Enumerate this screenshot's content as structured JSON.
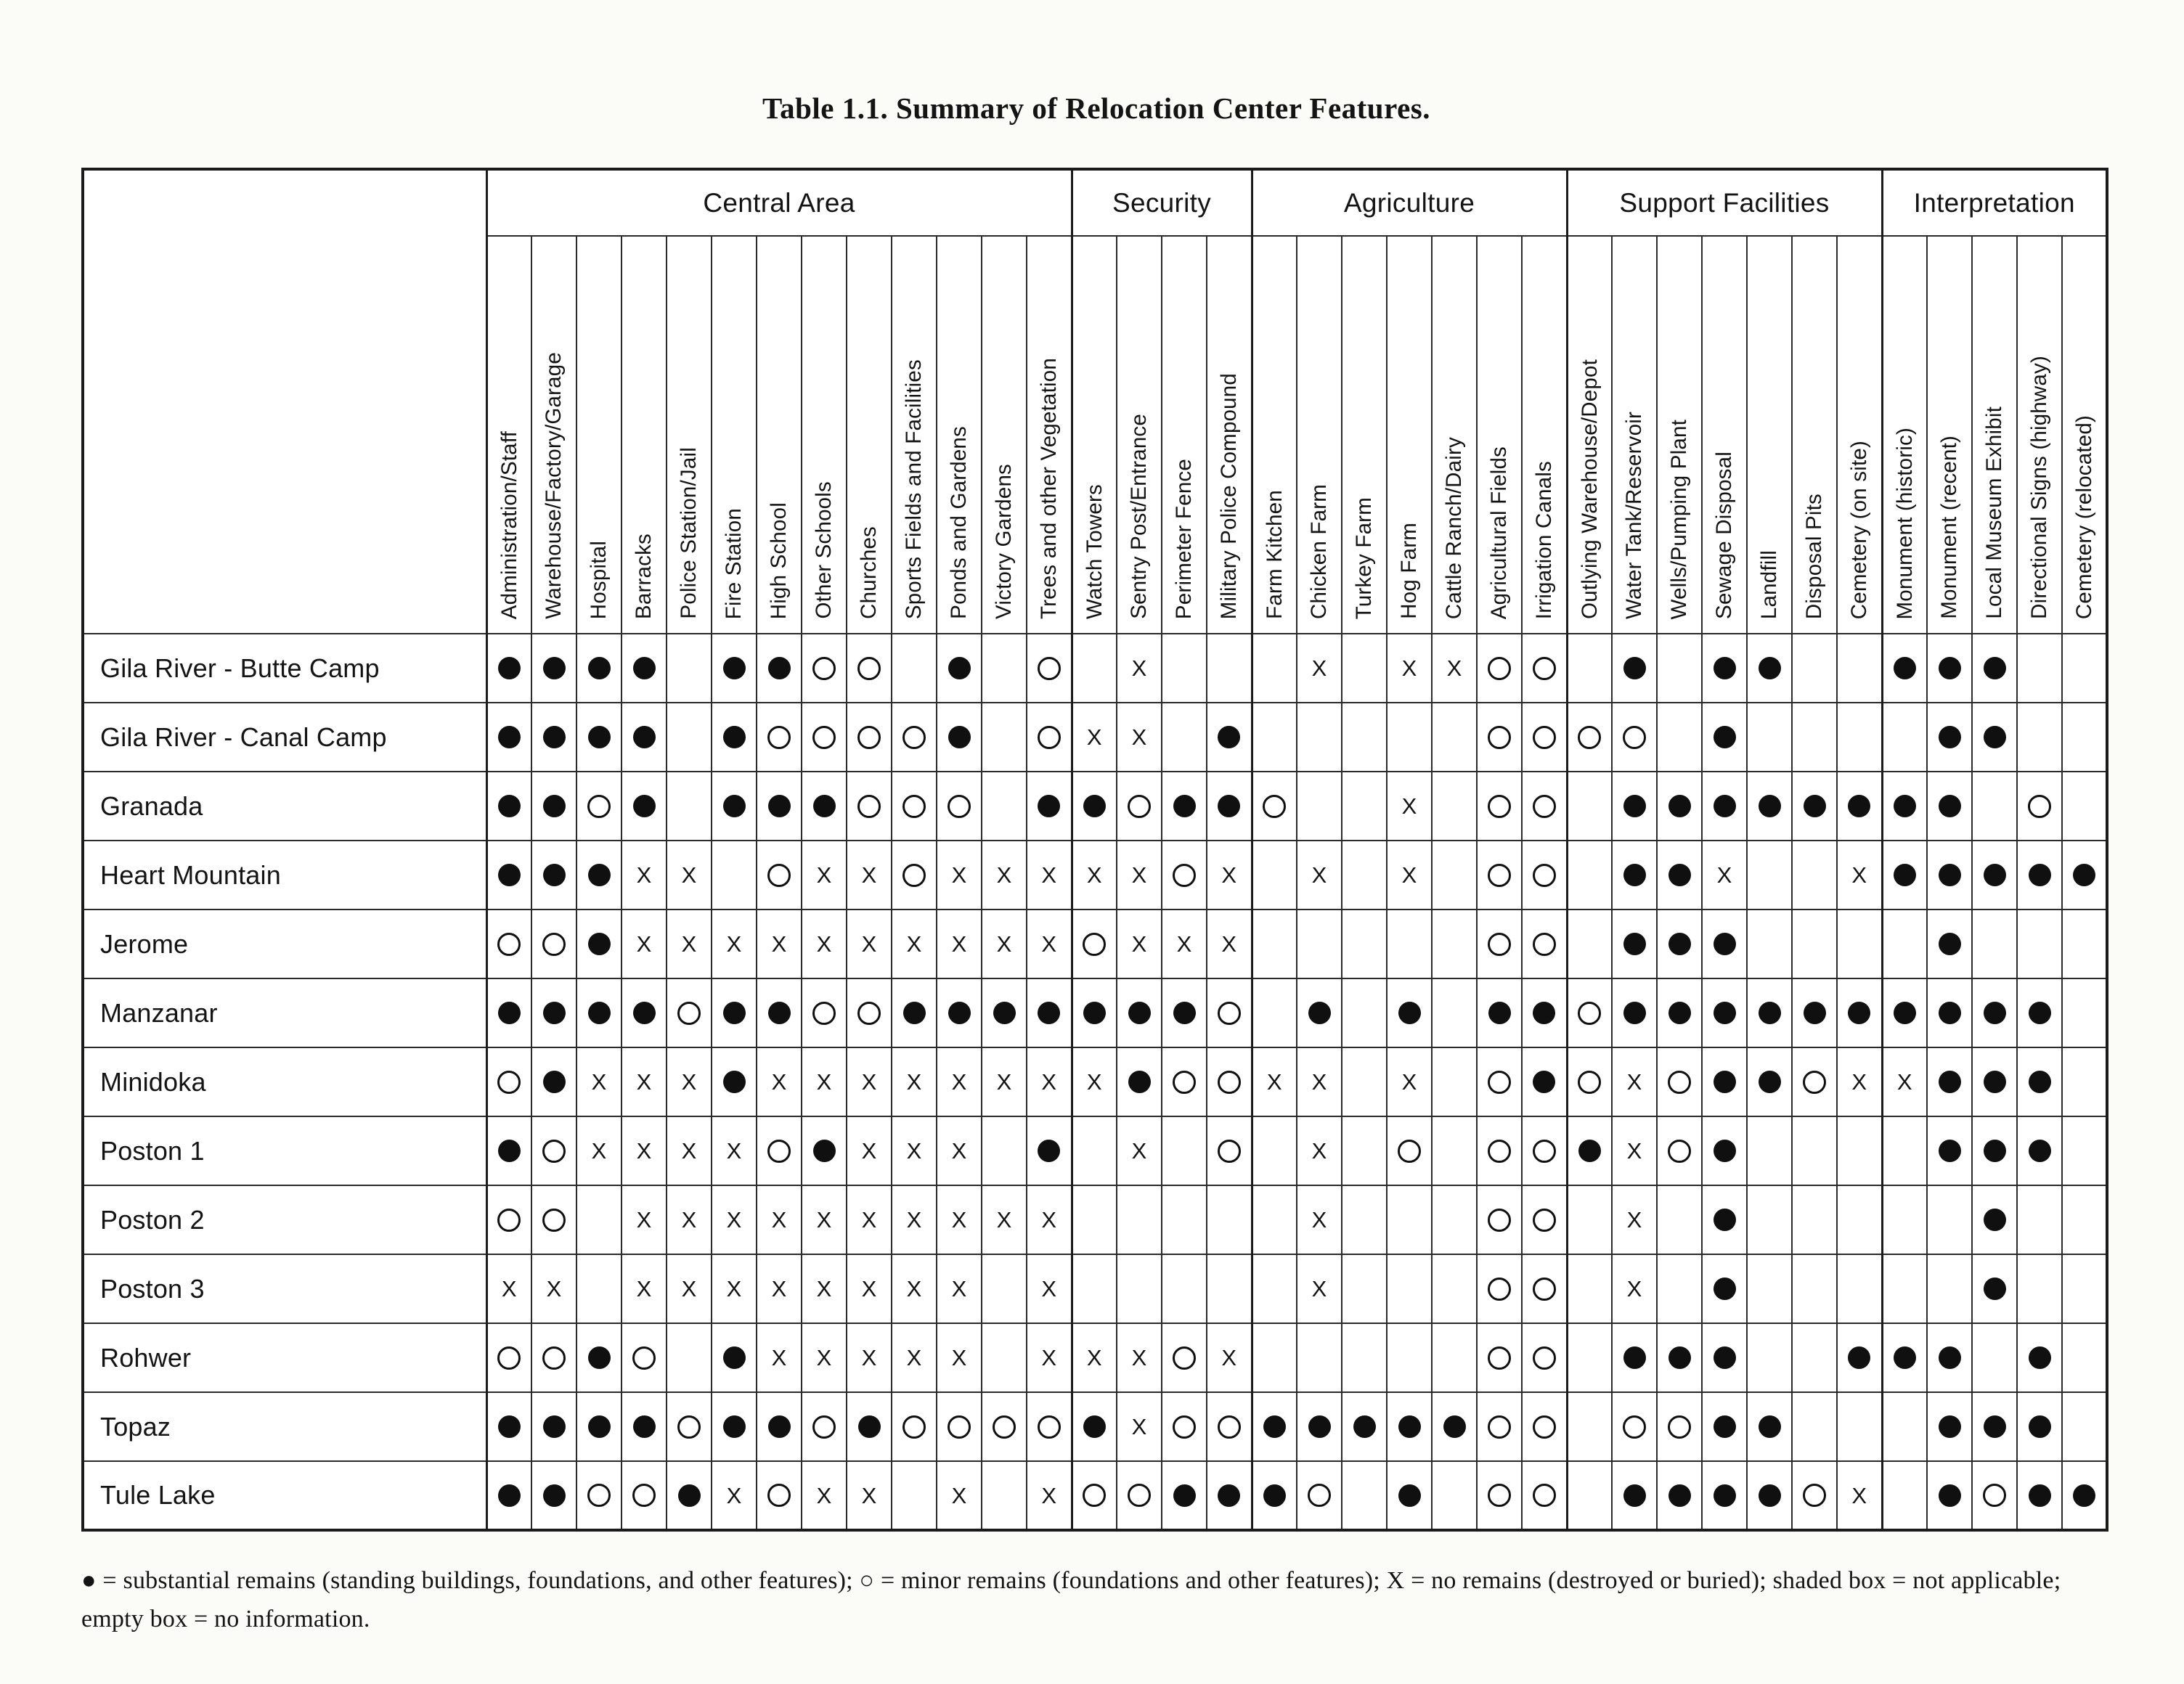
{
  "page": {
    "title": "Table 1.1. Summary of Relocation Center Features.",
    "legend": "● = substantial remains (standing buildings, foundations, and other features); ○ = minor remains (foundations and other features); X = no remains (destroyed or buried); shaded box = not applicable; empty box = no information."
  },
  "table": {
    "symbol_legend": {
      "F": "substantial remains (filled circle)",
      "O": "minor remains (open circle)",
      "X": "no remains",
      "": "no information"
    },
    "groups": [
      {
        "label": "Central Area",
        "columns": [
          "Administration/Staff",
          "Warehouse/Factory/Garage",
          "Hospital",
          "Barracks",
          "Police Station/Jail",
          "Fire Station",
          "High School",
          "Other Schools",
          "Churches",
          "Sports Fields and Facilities",
          "Ponds and Gardens",
          "Victory Gardens",
          "Trees and other Vegetation"
        ]
      },
      {
        "label": "Security",
        "columns": [
          "Watch Towers",
          "Sentry Post/Entrance",
          "Perimeter Fence",
          "Military Police Compound"
        ]
      },
      {
        "label": "Agriculture",
        "columns": [
          "Farm Kitchen",
          "Chicken Farm",
          "Turkey Farm",
          "Hog Farm",
          "Cattle Ranch/Dairy",
          "Agricultural Fields",
          "Irrigation Canals"
        ]
      },
      {
        "label": "Support Facilities",
        "columns": [
          "Outlying Warehouse/Depot",
          "Water Tank/Reservoir",
          "Wells/Pumping Plant",
          "Sewage Disposal",
          "Landfill",
          "Disposal Pits",
          "Cemetery (on site)"
        ]
      },
      {
        "label": "Interpretation",
        "columns": [
          "Monument (historic)",
          "Monument (recent)",
          "Local Museum Exhibit",
          "Directional Signs (highway)",
          "Cemetery (relocated)"
        ]
      }
    ],
    "rows": [
      {
        "name": "Gila River - Butte Camp",
        "cells": [
          "F",
          "F",
          "F",
          "F",
          "",
          "F",
          "F",
          "O",
          "O",
          "",
          "F",
          "",
          "O",
          "",
          "X",
          "",
          "",
          "",
          "X",
          "",
          "X",
          "X",
          "O",
          "O",
          "",
          "F",
          "",
          "F",
          "F",
          "",
          "",
          "F",
          "F",
          "F",
          "",
          ""
        ]
      },
      {
        "name": "Gila River - Canal Camp",
        "cells": [
          "F",
          "F",
          "F",
          "F",
          "",
          "F",
          "O",
          "O",
          "O",
          "O",
          "F",
          "",
          "O",
          "X",
          "X",
          "",
          "F",
          "",
          "",
          "",
          "",
          "",
          "O",
          "O",
          "O",
          "O",
          "",
          "F",
          "",
          "",
          "",
          "",
          "F",
          "F",
          "",
          ""
        ]
      },
      {
        "name": "Granada",
        "cells": [
          "F",
          "F",
          "O",
          "F",
          "",
          "F",
          "F",
          "F",
          "O",
          "O",
          "O",
          "",
          "F",
          "F",
          "O",
          "F",
          "F",
          "O",
          "",
          "",
          "X",
          "",
          "O",
          "O",
          "",
          "F",
          "F",
          "F",
          "F",
          "F",
          "F",
          "F",
          "F",
          "",
          "O",
          ""
        ]
      },
      {
        "name": "Heart Mountain",
        "cells": [
          "F",
          "F",
          "F",
          "X",
          "X",
          "",
          "O",
          "X",
          "X",
          "O",
          "X",
          "X",
          "X",
          "X",
          "X",
          "O",
          "X",
          "",
          "X",
          "",
          "X",
          "",
          "O",
          "O",
          "",
          "F",
          "F",
          "X",
          "",
          "",
          "X",
          "F",
          "F",
          "F",
          "F",
          "F"
        ]
      },
      {
        "name": "Jerome",
        "cells": [
          "O",
          "O",
          "F",
          "X",
          "X",
          "X",
          "X",
          "X",
          "X",
          "X",
          "X",
          "X",
          "X",
          "O",
          "X",
          "X",
          "X",
          "",
          "",
          "",
          "",
          "",
          "O",
          "O",
          "",
          "F",
          "F",
          "F",
          "",
          "",
          "",
          "",
          "F",
          "",
          "",
          ""
        ]
      },
      {
        "name": "Manzanar",
        "cells": [
          "F",
          "F",
          "F",
          "F",
          "O",
          "F",
          "F",
          "O",
          "O",
          "F",
          "F",
          "F",
          "F",
          "F",
          "F",
          "F",
          "O",
          "",
          "F",
          "",
          "F",
          "",
          "F",
          "F",
          "O",
          "F",
          "F",
          "F",
          "F",
          "F",
          "F",
          "F",
          "F",
          "F",
          "F",
          ""
        ]
      },
      {
        "name": "Minidoka",
        "cells": [
          "O",
          "F",
          "X",
          "X",
          "X",
          "F",
          "X",
          "X",
          "X",
          "X",
          "X",
          "X",
          "X",
          "X",
          "F",
          "O",
          "O",
          "X",
          "X",
          "",
          "X",
          "",
          "O",
          "F",
          "O",
          "X",
          "O",
          "F",
          "F",
          "O",
          "X",
          "X",
          "F",
          "F",
          "F",
          ""
        ]
      },
      {
        "name": "Poston 1",
        "cells": [
          "F",
          "O",
          "X",
          "X",
          "X",
          "X",
          "O",
          "F",
          "X",
          "X",
          "X",
          "",
          "F",
          "",
          "X",
          "",
          "O",
          "",
          "X",
          "",
          "O",
          "",
          "O",
          "O",
          "F",
          "X",
          "O",
          "F",
          "",
          "",
          "",
          "",
          "F",
          "F",
          "F",
          ""
        ]
      },
      {
        "name": "Poston 2",
        "cells": [
          "O",
          "O",
          "",
          "X",
          "X",
          "X",
          "X",
          "X",
          "X",
          "X",
          "X",
          "X",
          "X",
          "",
          "",
          "",
          "",
          "",
          "X",
          "",
          "",
          "",
          "O",
          "O",
          "",
          "X",
          "",
          "F",
          "",
          "",
          "",
          "",
          "",
          "F",
          "",
          ""
        ]
      },
      {
        "name": "Poston 3",
        "cells": [
          "X",
          "X",
          "",
          "X",
          "X",
          "X",
          "X",
          "X",
          "X",
          "X",
          "X",
          "",
          "X",
          "",
          "",
          "",
          "",
          "",
          "X",
          "",
          "",
          "",
          "O",
          "O",
          "",
          "X",
          "",
          "F",
          "",
          "",
          "",
          "",
          "",
          "F",
          "",
          ""
        ]
      },
      {
        "name": "Rohwer",
        "cells": [
          "O",
          "O",
          "F",
          "O",
          "",
          "F",
          "X",
          "X",
          "X",
          "X",
          "X",
          "",
          "X",
          "X",
          "X",
          "O",
          "X",
          "",
          "",
          "",
          "",
          "",
          "O",
          "O",
          "",
          "F",
          "F",
          "F",
          "",
          "",
          "F",
          "F",
          "F",
          "",
          "F",
          ""
        ]
      },
      {
        "name": "Topaz",
        "cells": [
          "F",
          "F",
          "F",
          "F",
          "O",
          "F",
          "F",
          "O",
          "F",
          "O",
          "O",
          "O",
          "O",
          "F",
          "X",
          "O",
          "O",
          "F",
          "F",
          "F",
          "F",
          "F",
          "O",
          "O",
          "",
          "O",
          "O",
          "F",
          "F",
          "",
          "",
          "",
          "F",
          "F",
          "F",
          ""
        ]
      },
      {
        "name": "Tule Lake",
        "cells": [
          "F",
          "F",
          "O",
          "O",
          "F",
          "X",
          "O",
          "X",
          "X",
          "",
          "X",
          "",
          "X",
          "O",
          "O",
          "F",
          "F",
          "F",
          "O",
          "",
          "F",
          "",
          "O",
          "O",
          "",
          "F",
          "F",
          "F",
          "F",
          "O",
          "X",
          "",
          "F",
          "O",
          "F",
          "F"
        ]
      }
    ]
  }
}
